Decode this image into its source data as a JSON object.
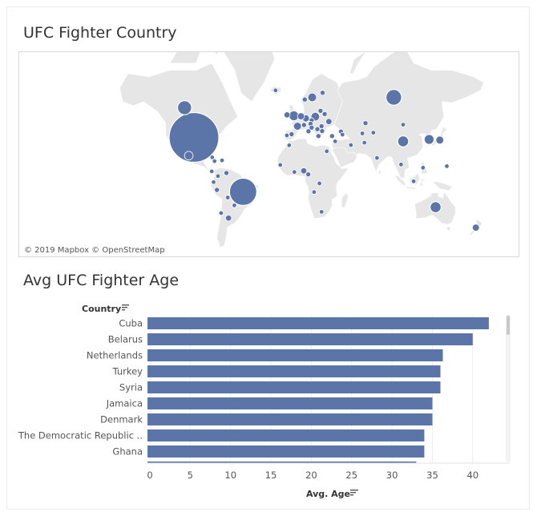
{
  "map": {
    "title": "UFC Fighter Country",
    "attribution": "© 2019 Mapbox  © OpenStreetMap",
    "marker_color": "#5b75a8",
    "land_color": "#e6e6e6",
    "markers": [
      {
        "name": "USA",
        "lon": -97,
        "lat": 38,
        "size": 100
      },
      {
        "name": "Canada",
        "lon": -106,
        "lat": 57,
        "size": 8
      },
      {
        "name": "Brazil",
        "lon": -50,
        "lat": -11,
        "size": 30
      },
      {
        "name": "Russia",
        "lon": 94,
        "lat": 62,
        "size": 10
      },
      {
        "name": "Australia",
        "lon": 134,
        "lat": -25,
        "size": 5
      },
      {
        "name": "China",
        "lon": 103,
        "lat": 35,
        "size": 5
      },
      {
        "name": "South Korea",
        "lon": 127.8,
        "lat": 36.5,
        "size": 4
      },
      {
        "name": "Japan",
        "lon": 138,
        "lat": 36,
        "size": 2.5
      },
      {
        "name": "England",
        "lon": -1.5,
        "lat": 52.5,
        "size": 4
      },
      {
        "name": "Sweden",
        "lon": 16,
        "lat": 62,
        "size": 3
      },
      {
        "name": "Poland",
        "lon": 19,
        "lat": 52,
        "size": 3
      },
      {
        "name": "France",
        "lon": 2,
        "lat": 46,
        "size": 2.5
      },
      {
        "name": "Germany",
        "lon": 10,
        "lat": 51,
        "size": 2
      },
      {
        "name": "Netherlands",
        "lon": 5.3,
        "lat": 52.2,
        "size": 2
      },
      {
        "name": "Mexico",
        "lon": -102,
        "lat": 23,
        "size": 3
      },
      {
        "name": "Nigeria",
        "lon": 8,
        "lat": 9,
        "size": 1.5
      },
      {
        "name": "Ireland",
        "lon": -8,
        "lat": 53,
        "size": 1.5
      },
      {
        "name": "Italy",
        "lon": 12.5,
        "lat": 42.5,
        "size": 1
      },
      {
        "name": "Spain",
        "lon": -3.7,
        "lat": 40.4,
        "size": 1
      },
      {
        "name": "Norway",
        "lon": 9,
        "lat": 61,
        "size": 1
      },
      {
        "name": "Finland",
        "lon": 26,
        "lat": 64,
        "size": 1
      },
      {
        "name": "Ukraine",
        "lon": 32,
        "lat": 49,
        "size": 1.5
      },
      {
        "name": "Belarus",
        "lon": 28,
        "lat": 53.5,
        "size": 1
      },
      {
        "name": "Lithuania",
        "lon": 24,
        "lat": 55.3,
        "size": 1
      },
      {
        "name": "Czech Republic",
        "lon": 15.5,
        "lat": 49.8,
        "size": 1
      },
      {
        "name": "Austria",
        "lon": 14.5,
        "lat": 47.5,
        "size": 1
      },
      {
        "name": "Switzerland",
        "lon": 8.2,
        "lat": 46.8,
        "size": 1
      },
      {
        "name": "Croatia",
        "lon": 15.5,
        "lat": 45.1,
        "size": 1
      },
      {
        "name": "Serbia",
        "lon": 21,
        "lat": 44,
        "size": 1
      },
      {
        "name": "Romania",
        "lon": 25,
        "lat": 46,
        "size": 1
      },
      {
        "name": "Bulgaria",
        "lon": 25.5,
        "lat": 42.7,
        "size": 1
      },
      {
        "name": "Greece",
        "lon": 22,
        "lat": 39,
        "size": 1
      },
      {
        "name": "Portugal",
        "lon": -8.2,
        "lat": 39.5,
        "size": 0.8
      },
      {
        "name": "Iceland",
        "lon": -19,
        "lat": 65,
        "size": 0.8
      },
      {
        "name": "Turkey",
        "lon": 35,
        "lat": 39,
        "size": 1
      },
      {
        "name": "Georgia",
        "lon": 43.5,
        "lat": 42.3,
        "size": 1
      },
      {
        "name": "Armenia",
        "lon": 45,
        "lat": 40.1,
        "size": 0.8
      },
      {
        "name": "Kazakhstan",
        "lon": 67,
        "lat": 48,
        "size": 1
      },
      {
        "name": "Kyrgyzstan",
        "lon": 74.5,
        "lat": 41.5,
        "size": 0.8
      },
      {
        "name": "Uzbekistan",
        "lon": 64,
        "lat": 41,
        "size": 0.8
      },
      {
        "name": "Syria",
        "lon": 38,
        "lat": 35,
        "size": 0.8
      },
      {
        "name": "Iran",
        "lon": 53,
        "lat": 32,
        "size": 0.8
      },
      {
        "name": "Afghanistan",
        "lon": 66,
        "lat": 33.9,
        "size": 0.8
      },
      {
        "name": "Morocco",
        "lon": -6,
        "lat": 31.8,
        "size": 0.8
      },
      {
        "name": "Egypt",
        "lon": 30,
        "lat": 26.8,
        "size": 0.8
      },
      {
        "name": "Cameroon",
        "lon": 12.3,
        "lat": 5.7,
        "size": 1
      },
      {
        "name": "DR Congo",
        "lon": 23,
        "lat": -3,
        "size": 0.8
      },
      {
        "name": "Ghana",
        "lon": -1,
        "lat": 7.9,
        "size": 0.8
      },
      {
        "name": "Senegal",
        "lon": -14.5,
        "lat": 14.5,
        "size": 0.8
      },
      {
        "name": "Angola",
        "lon": 17.9,
        "lat": -11.2,
        "size": 0.8
      },
      {
        "name": "South Africa",
        "lon": 25,
        "lat": -29,
        "size": 0.8
      },
      {
        "name": "India",
        "lon": 78,
        "lat": 21,
        "size": 0.8
      },
      {
        "name": "Thailand",
        "lon": 101,
        "lat": 15,
        "size": 0.8
      },
      {
        "name": "Philippines",
        "lon": 122,
        "lat": 12,
        "size": 0.8
      },
      {
        "name": "Indonesia",
        "lon": 113,
        "lat": -1,
        "size": 0.8
      },
      {
        "name": "Mongolia",
        "lon": 103,
        "lat": 47,
        "size": 0.8
      },
      {
        "name": "Guam",
        "lon": 144.8,
        "lat": 13.4,
        "size": 0.8
      },
      {
        "name": "New Zealand",
        "lon": 172.5,
        "lat": -41.3,
        "size": 2
      },
      {
        "name": "Cuba",
        "lon": -79.5,
        "lat": 21.5,
        "size": 0.8
      },
      {
        "name": "Jamaica",
        "lon": -77.3,
        "lat": 18.1,
        "size": 0.8
      },
      {
        "name": "Dominican Republic",
        "lon": -70.2,
        "lat": 18.7,
        "size": 0.8
      },
      {
        "name": "Panama",
        "lon": -80,
        "lat": 8.5,
        "size": 0.8
      },
      {
        "name": "Venezuela",
        "lon": -66,
        "lat": 7,
        "size": 1
      },
      {
        "name": "Colombia",
        "lon": -74,
        "lat": 4,
        "size": 0.8
      },
      {
        "name": "Ecuador",
        "lon": -78.2,
        "lat": -1.8,
        "size": 0.8
      },
      {
        "name": "Peru",
        "lon": -75,
        "lat": -9.2,
        "size": 1
      },
      {
        "name": "Bolivia",
        "lon": -64.7,
        "lat": -16.3,
        "size": 0.8
      },
      {
        "name": "Paraguay",
        "lon": -58.4,
        "lat": -23.4,
        "size": 0.8
      },
      {
        "name": "Argentina",
        "lon": -64,
        "lat": -34,
        "size": 1.5
      },
      {
        "name": "Chile",
        "lon": -71,
        "lat": -30,
        "size": 0.8
      }
    ]
  },
  "chart_data": {
    "type": "bar",
    "orientation": "horizontal",
    "title": "Avg UFC Fighter Age",
    "category_axis_label": "Country",
    "xlabel": "Avg. Age",
    "categories": [
      "Cuba",
      "Belarus",
      "Netherlands",
      "Turkey",
      "Syria",
      "Jamaica",
      "Denmark",
      "The Democratic Republic ..",
      "Ghana",
      ""
    ],
    "values": [
      42,
      40,
      36.3,
      36,
      36,
      35,
      35,
      34,
      34,
      33
    ],
    "xlim": [
      0,
      45
    ],
    "xticks": [
      0,
      5,
      10,
      15,
      20,
      25,
      30,
      35,
      40
    ],
    "xtick_labels": [
      "0",
      "5",
      "10",
      "15",
      "20",
      "25",
      "30",
      "35",
      "40"
    ],
    "bar_color": "#5b75a8",
    "grid": "vertical"
  }
}
